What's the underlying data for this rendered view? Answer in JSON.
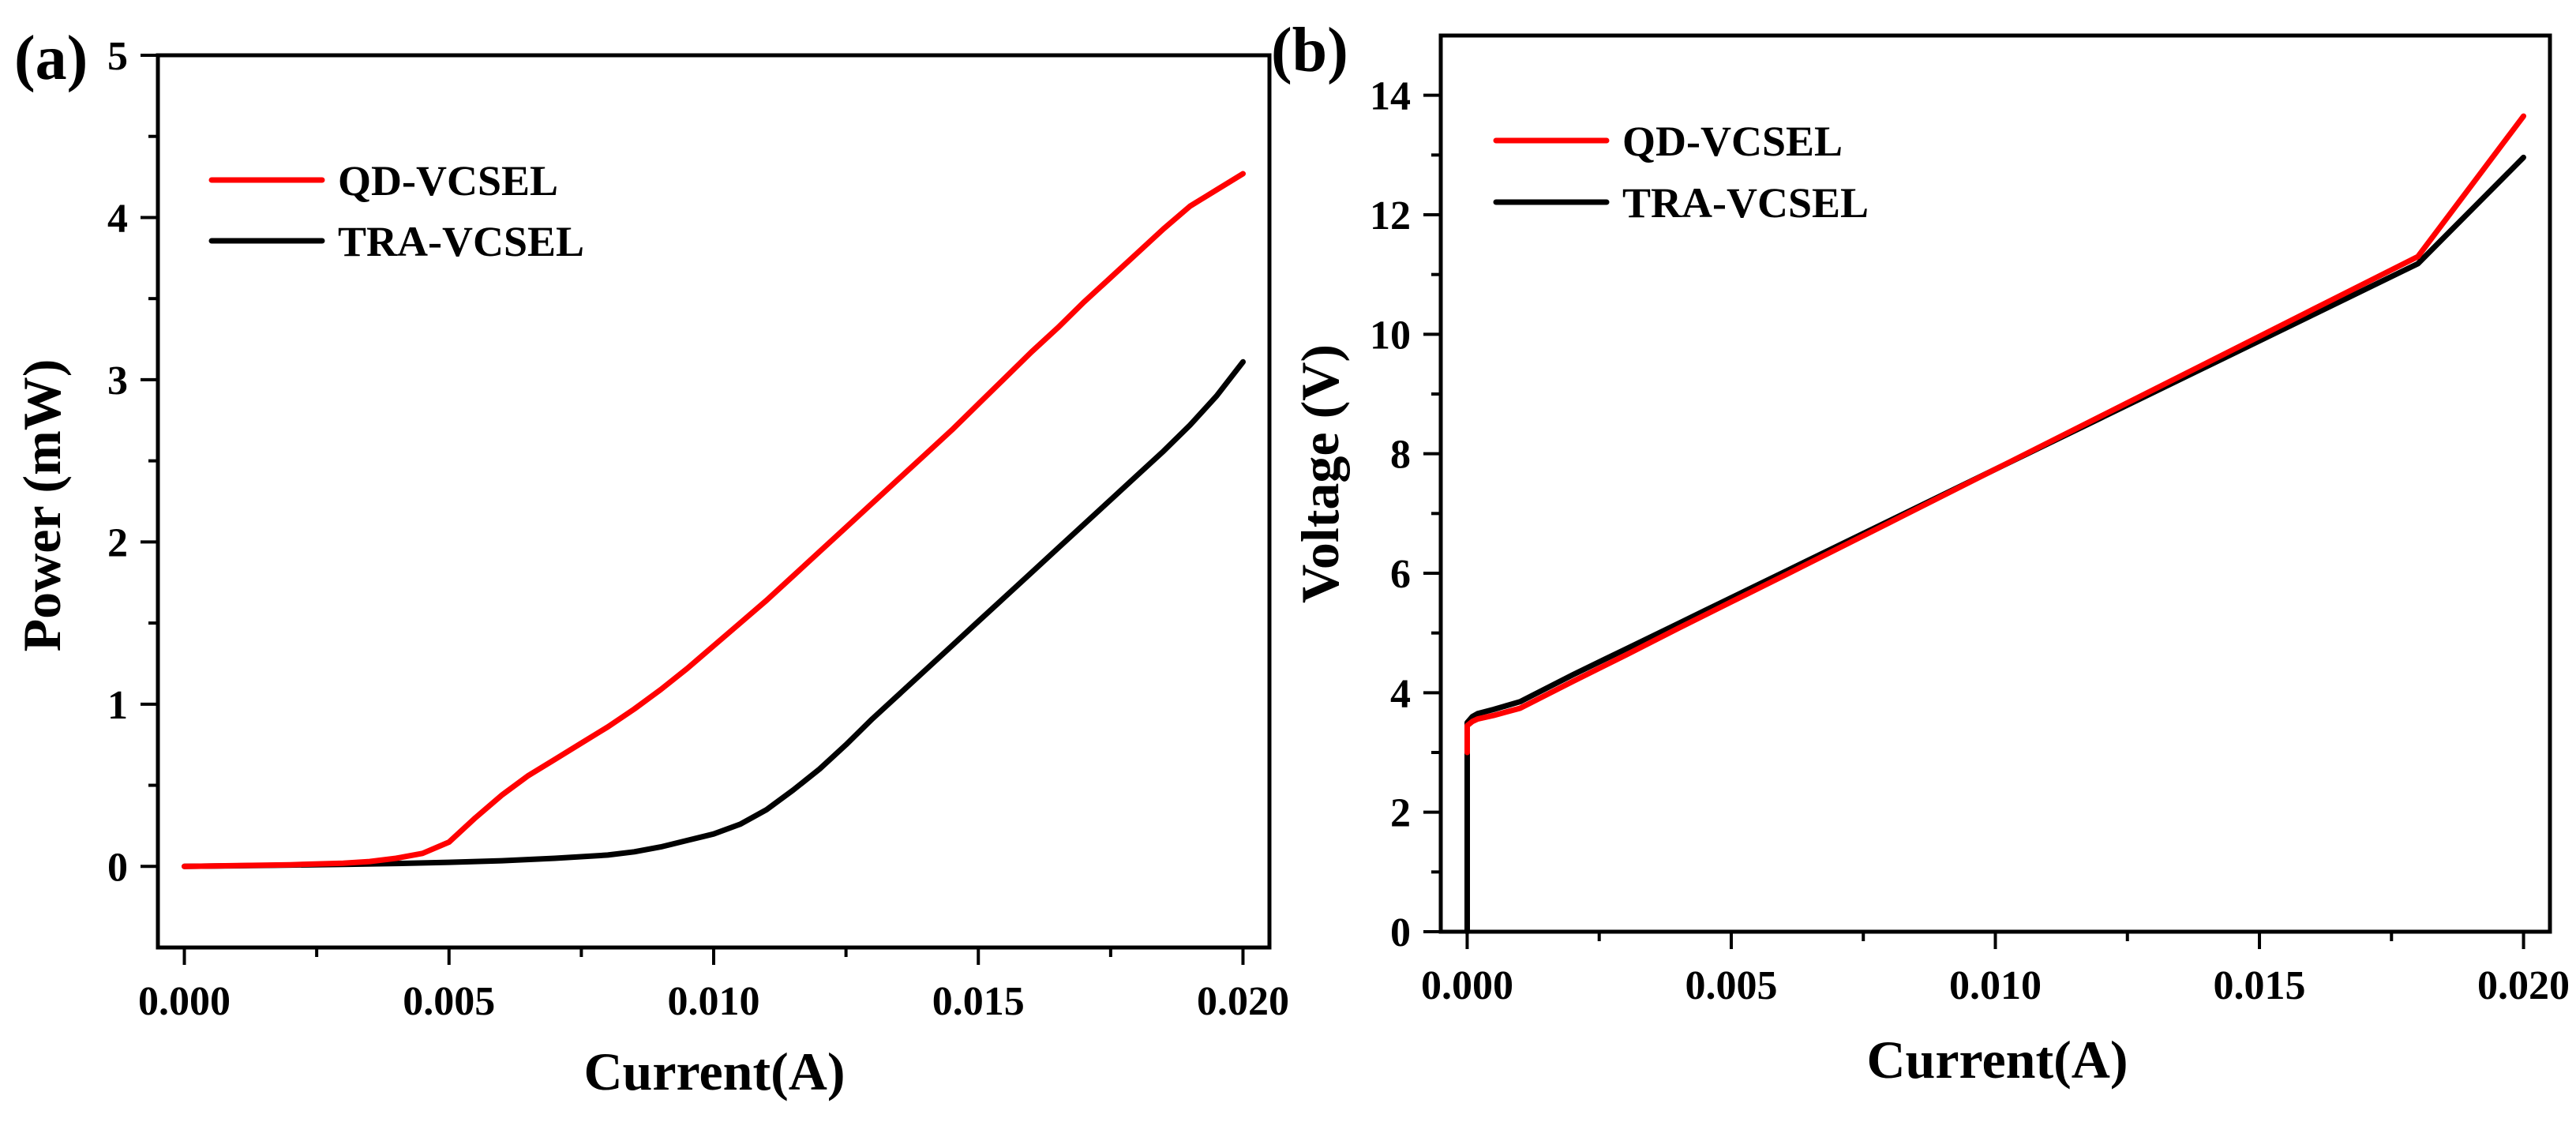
{
  "chart_data": [
    {
      "type": "line",
      "panel_label": "(a)",
      "xlabel": "Current(A)",
      "ylabel": "Power (mW)",
      "xlim": [
        -0.0005,
        0.0205
      ],
      "ylim": [
        -0.5,
        5
      ],
      "x_ticks": [
        0.0,
        0.005,
        0.01,
        0.015,
        0.02
      ],
      "x_tick_labels": [
        "0.000",
        "0.005",
        "0.010",
        "0.015",
        "0.020"
      ],
      "y_ticks": [
        0,
        1,
        2,
        3,
        4,
        5
      ],
      "y_tick_labels": [
        "0",
        "1",
        "2",
        "3",
        "4",
        "5"
      ],
      "legend_position": "top-left",
      "series": [
        {
          "name": "QD-VCSEL",
          "color": "#ff0000",
          "x": [
            0.0,
            0.001,
            0.002,
            0.003,
            0.0035,
            0.004,
            0.0045,
            0.005,
            0.0055,
            0.006,
            0.0065,
            0.007,
            0.0075,
            0.008,
            0.0085,
            0.009,
            0.0095,
            0.01,
            0.0105,
            0.011,
            0.0115,
            0.012,
            0.0125,
            0.013,
            0.0135,
            0.014,
            0.0145,
            0.015,
            0.0155,
            0.016,
            0.0165,
            0.017,
            0.0175,
            0.018,
            0.0185,
            0.019,
            0.0195,
            0.02
          ],
          "y": [
            0.0,
            0.005,
            0.01,
            0.02,
            0.03,
            0.05,
            0.08,
            0.15,
            0.3,
            0.44,
            0.56,
            0.66,
            0.76,
            0.86,
            0.97,
            1.09,
            1.22,
            1.36,
            1.5,
            1.64,
            1.79,
            1.94,
            2.09,
            2.24,
            2.39,
            2.54,
            2.69,
            2.85,
            3.01,
            3.17,
            3.32,
            3.48,
            3.63,
            3.78,
            3.93,
            4.07,
            4.17,
            4.27
          ]
        },
        {
          "name": "TRA-VCSEL",
          "color": "#000000",
          "x": [
            0.0,
            0.001,
            0.002,
            0.003,
            0.004,
            0.005,
            0.006,
            0.007,
            0.008,
            0.0085,
            0.009,
            0.0095,
            0.01,
            0.0105,
            0.011,
            0.0115,
            0.012,
            0.0125,
            0.013,
            0.0135,
            0.014,
            0.0145,
            0.015,
            0.0155,
            0.016,
            0.0165,
            0.017,
            0.0175,
            0.018,
            0.0185,
            0.019,
            0.0195,
            0.02
          ],
          "y": [
            0.0,
            0.004,
            0.008,
            0.012,
            0.018,
            0.025,
            0.035,
            0.05,
            0.07,
            0.09,
            0.12,
            0.16,
            0.2,
            0.26,
            0.35,
            0.47,
            0.6,
            0.75,
            0.91,
            1.06,
            1.21,
            1.36,
            1.51,
            1.66,
            1.81,
            1.96,
            2.11,
            2.26,
            2.41,
            2.56,
            2.72,
            2.9,
            3.11
          ]
        }
      ]
    },
    {
      "type": "line",
      "panel_label": "(b)",
      "xlabel": "Current(A)",
      "ylabel": "Voltage (V)",
      "xlim": [
        -0.0005,
        0.0205
      ],
      "ylim": [
        0,
        15
      ],
      "x_ticks": [
        0.0,
        0.005,
        0.01,
        0.015,
        0.02
      ],
      "x_tick_labels": [
        "0.000",
        "0.005",
        "0.010",
        "0.015",
        "0.020"
      ],
      "y_ticks": [
        0,
        2,
        4,
        6,
        8,
        10,
        12,
        14
      ],
      "y_tick_labels": [
        "0",
        "2",
        "4",
        "6",
        "8",
        "10",
        "12",
        "14"
      ],
      "legend_position": "top-left",
      "series": [
        {
          "name": "QD-VCSEL",
          "color": "#ff0000",
          "x": [
            0.0,
            0.0,
            0.0,
            0.0001,
            0.0002,
            0.0005,
            0.001,
            0.002,
            0.003,
            0.004,
            0.005,
            0.006,
            0.008,
            0.01,
            0.012,
            0.014,
            0.016,
            0.018,
            0.02
          ],
          "y": [
            3.0,
            3.3,
            3.45,
            3.52,
            3.56,
            3.62,
            3.74,
            4.19,
            4.63,
            5.08,
            5.52,
            5.96,
            6.85,
            7.74,
            8.63,
            9.52,
            10.41,
            11.3,
            13.65
          ]
        },
        {
          "name": "TRA-VCSEL",
          "color": "#000000",
          "x": [
            0.0,
            0.0,
            0.0,
            0.0,
            0.0001,
            0.0002,
            0.0005,
            0.001,
            0.002,
            0.003,
            0.004,
            0.005,
            0.006,
            0.008,
            0.01,
            0.012,
            0.014,
            0.016,
            0.018,
            0.02
          ],
          "y": [
            0.0,
            1.5,
            3.0,
            3.5,
            3.6,
            3.65,
            3.72,
            3.85,
            4.3,
            4.73,
            5.16,
            5.59,
            6.02,
            6.88,
            7.74,
            8.6,
            9.46,
            10.32,
            11.18,
            12.96
          ]
        }
      ]
    }
  ]
}
